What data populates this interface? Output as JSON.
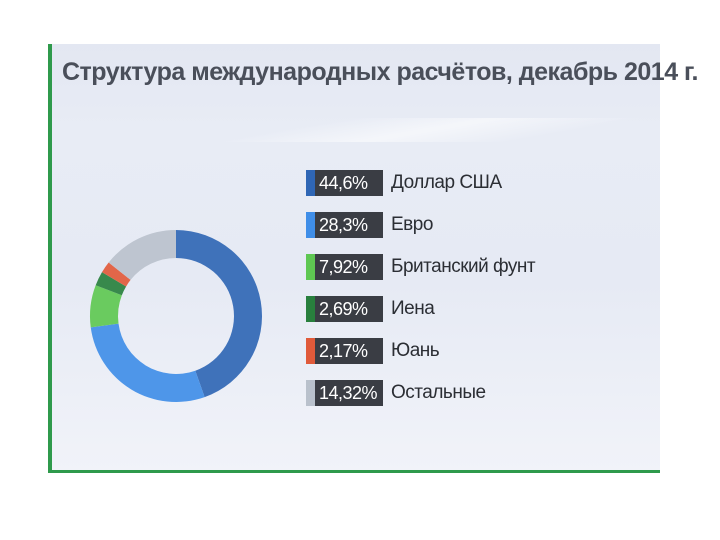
{
  "chart_data": {
    "type": "pie",
    "variant": "donut",
    "title": "Структура международных расчётов, декабрь 2014 г.",
    "legend_placement": "right",
    "series": [
      {
        "name": "Доллар США",
        "value": 44.6,
        "value_label": "44,6%",
        "color": "#2f66b5"
      },
      {
        "name": "Евро",
        "value": 28.3,
        "value_label": "28,3%",
        "color": "#3f8ee8"
      },
      {
        "name": "Британский фунт",
        "value": 7.92,
        "value_label": "7,92%",
        "color": "#5ec752"
      },
      {
        "name": "Иена",
        "value": 2.69,
        "value_label": "2,69%",
        "color": "#287f3d"
      },
      {
        "name": "Юань",
        "value": 2.17,
        "value_label": "2,17%",
        "color": "#e05a3a"
      },
      {
        "name": "Остальные",
        "value": 14.32,
        "value_label": "14,32%",
        "color": "#b9c1cc"
      }
    ]
  },
  "colors": {
    "accent_green": "#2f9a4c",
    "panel_background": "#e7ebf5",
    "label_box": "#3a3d44"
  }
}
